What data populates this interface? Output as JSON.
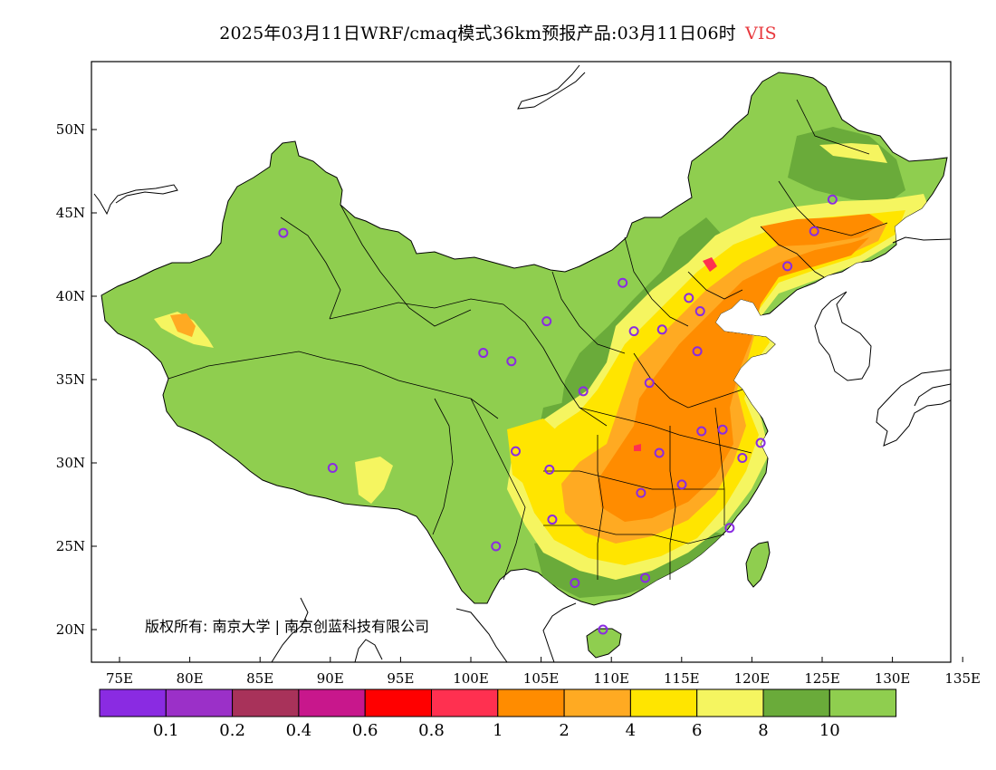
{
  "header": {
    "title": "2025年03月11日WRF/cmaq模式36km预报产品:03月11日06时",
    "variable": "VIS",
    "variable_color": "#e8383d"
  },
  "copyright": "版权所有: 南京大学 | 南京创蓝科技有限公司",
  "axes": {
    "lon_ticks": [
      "75E",
      "80E",
      "85E",
      "90E",
      "95E",
      "100E",
      "105E",
      "110E",
      "115E",
      "120E",
      "125E",
      "130E",
      "135E"
    ],
    "lat_ticks": [
      "50N",
      "45N",
      "40N",
      "35N",
      "30N",
      "25N",
      "20N"
    ]
  },
  "colorbar": {
    "colors": [
      "#8a2be2",
      "#9b30c8",
      "#a8325a",
      "#c8178c",
      "#ff0000",
      "#ff3050",
      "#ff8c00",
      "#ffaa22",
      "#ffe500",
      "#f5f560",
      "#6aab3a",
      "#8fce4f"
    ],
    "labels": [
      "0.1",
      "0.2",
      "0.4",
      "0.6",
      "0.8",
      "1",
      "2",
      "4",
      "6",
      "8",
      "10"
    ]
  },
  "map_colors": {
    "background": "#8fce4f",
    "dark_green": "#6aab3a",
    "light_yellow": "#f5f560",
    "yellow": "#ffe500",
    "light_orange": "#ffaa22",
    "orange": "#ff8c00",
    "red": "#ff3050"
  },
  "stations": [
    {
      "lon": 87.6,
      "lat": 43.8
    },
    {
      "lon": 91.1,
      "lat": 29.7
    },
    {
      "lon": 101.8,
      "lat": 36.6
    },
    {
      "lon": 103.8,
      "lat": 36.1
    },
    {
      "lon": 106.3,
      "lat": 38.5
    },
    {
      "lon": 111.7,
      "lat": 40.8
    },
    {
      "lon": 112.5,
      "lat": 37.9
    },
    {
      "lon": 114.5,
      "lat": 38.0
    },
    {
      "lon": 116.4,
      "lat": 39.9
    },
    {
      "lon": 117.2,
      "lat": 39.1
    },
    {
      "lon": 117.0,
      "lat": 36.7
    },
    {
      "lon": 113.6,
      "lat": 34.8
    },
    {
      "lon": 108.9,
      "lat": 34.3
    },
    {
      "lon": 104.1,
      "lat": 30.7
    },
    {
      "lon": 106.5,
      "lat": 29.6
    },
    {
      "lon": 106.7,
      "lat": 26.6
    },
    {
      "lon": 102.7,
      "lat": 25.0
    },
    {
      "lon": 108.3,
      "lat": 22.8
    },
    {
      "lon": 113.3,
      "lat": 23.1
    },
    {
      "lon": 110.3,
      "lat": 20.0
    },
    {
      "lon": 113.0,
      "lat": 28.2
    },
    {
      "lon": 114.3,
      "lat": 30.6
    },
    {
      "lon": 115.9,
      "lat": 28.7
    },
    {
      "lon": 117.3,
      "lat": 31.9
    },
    {
      "lon": 118.8,
      "lat": 32.0
    },
    {
      "lon": 120.2,
      "lat": 30.3
    },
    {
      "lon": 121.5,
      "lat": 31.2
    },
    {
      "lon": 119.3,
      "lat": 26.1
    },
    {
      "lon": 123.4,
      "lat": 41.8
    },
    {
      "lon": 125.3,
      "lat": 43.9
    },
    {
      "lon": 126.6,
      "lat": 45.8
    }
  ]
}
